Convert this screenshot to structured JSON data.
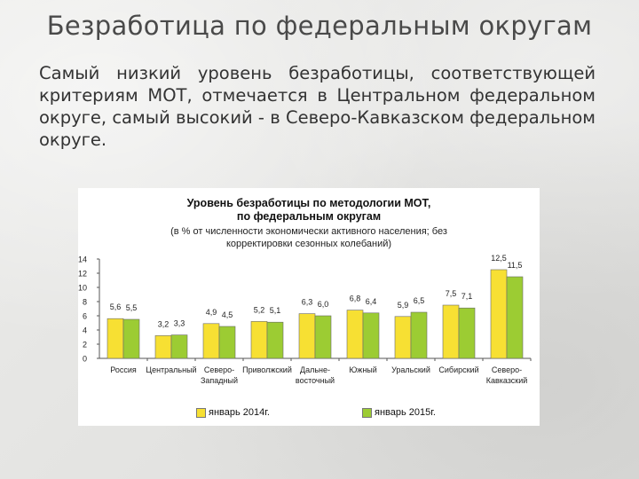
{
  "slide": {
    "title": "Безработица по федеральным округам",
    "body": "Самый низкий уровень безработицы, соответствующей критериям МОТ, отмечается в Центральном федеральном округе, самый высокий - в Северо-Кавказском федеральном округе."
  },
  "colors": {
    "series_2014": "#f7e033",
    "series_2015": "#9ccc33",
    "background": "#e6e6e4"
  },
  "chart_data": {
    "type": "bar",
    "title_line1": "Уровень безработицы по методологии МОТ,",
    "title_line2": "по федеральным округам",
    "subtitle": "(в % от численности экономически активного населения; без корректировки сезонных колебаний)",
    "categories": [
      [
        "Россия"
      ],
      [
        "Центральный"
      ],
      [
        "Северо-",
        "Западный"
      ],
      [
        "Приволжский"
      ],
      [
        "Дальне-",
        "восточный"
      ],
      [
        "Южный"
      ],
      [
        "Уральский"
      ],
      [
        "Сибирский"
      ],
      [
        "Северо-",
        "Кавказский"
      ]
    ],
    "series": [
      {
        "name": "январь 2014г.",
        "values": [
          5.6,
          3.2,
          4.9,
          5.2,
          6.3,
          6.8,
          5.9,
          7.5,
          12.5
        ],
        "labels": [
          "5,6",
          "3,2",
          "4,9",
          "5,2",
          "6,3",
          "6,8",
          "5,9",
          "7,5",
          "12,5"
        ]
      },
      {
        "name": "январь 2015г.",
        "values": [
          5.5,
          3.3,
          4.5,
          5.1,
          6.0,
          6.4,
          6.5,
          7.1,
          11.5
        ],
        "labels": [
          "5,5",
          "3,3",
          "4,5",
          "5,1",
          "6,0",
          "6,4",
          "6,5",
          "7,1",
          "11,5"
        ]
      }
    ],
    "yticks": [
      0,
      2,
      4,
      6,
      8,
      10,
      12,
      14
    ],
    "ylim": [
      0,
      14
    ],
    "grid": false,
    "legend": "bottom"
  }
}
